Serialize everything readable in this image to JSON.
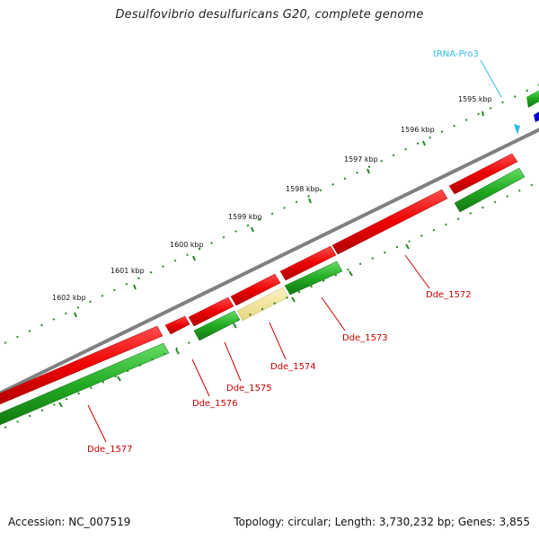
{
  "title": "Desulfovibrio desulfuricans G20, complete genome",
  "footer": {
    "accession": "Accession: NC_007519",
    "summary": "Topology: circular; Length: 3,730,232 bp; Genes: 3,855"
  },
  "colors": {
    "backbone": "#808080",
    "gene_forward": "#ee0000",
    "gene_reverse": "#22aa22",
    "pseudo": "#f2e39a",
    "trna": "#33bbee",
    "ticks_outer": "#228822"
  },
  "kbp_ticks": [
    "1595 kbp",
    "1596 kbp",
    "1597 kbp",
    "1598 kbp",
    "1599 kbp",
    "1600 kbp",
    "1601 kbp",
    "1602 kbp"
  ],
  "gene_labels": [
    "Dde_1572",
    "Dde_1573",
    "Dde_1574",
    "Dde_1575",
    "Dde_1576",
    "Dde_1577"
  ],
  "trna_label": "tRNA-Pro3"
}
